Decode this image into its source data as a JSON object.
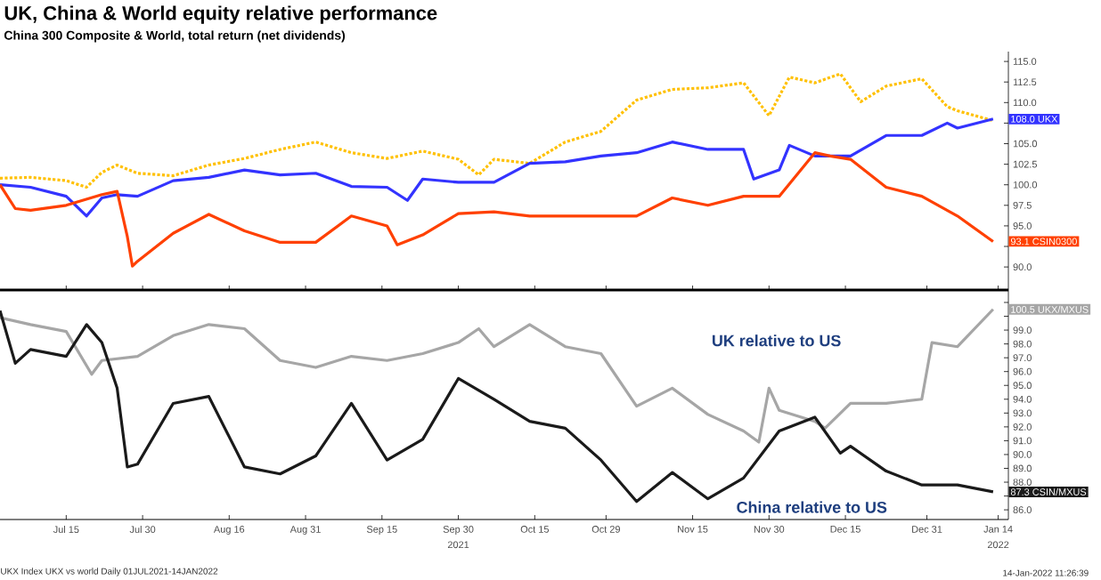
{
  "chart_data": [
    {
      "type": "line",
      "title": "UK, China & World equity relative performance",
      "subtitle": "China 300 Composite & World, total return (net dividends)",
      "xlim": [
        "2021-07-02",
        "2022-01-16"
      ],
      "ylim": [
        87.2,
        116.2
      ],
      "xticks": [
        {
          "value": "2021-07-15",
          "label": null
        },
        {
          "value": "2021-07-30",
          "label": null
        },
        {
          "value": "2021-08-16",
          "label": null
        },
        {
          "value": "2021-08-31",
          "label": null
        },
        {
          "value": "2021-09-15",
          "label": null
        },
        {
          "value": "2021-09-30",
          "label": null
        },
        {
          "value": "2021-10-15",
          "label": null
        },
        {
          "value": "2021-10-29",
          "label": null
        },
        {
          "value": "2021-11-15",
          "label": null
        },
        {
          "value": "2021-11-30",
          "label": null
        },
        {
          "value": "2021-12-15",
          "label": null
        },
        {
          "value": "2021-12-31",
          "label": null
        },
        {
          "value": "2022-01-14",
          "label": null
        }
      ],
      "yticks": [
        {
          "value": 90,
          "label": "90.0"
        },
        {
          "value": 92.5,
          "label": null
        },
        {
          "value": 95,
          "label": "95.0"
        },
        {
          "value": 97.5,
          "label": "97.5"
        },
        {
          "value": 100,
          "label": "100.0"
        },
        {
          "value": 102.5,
          "label": "102.5"
        },
        {
          "value": 105,
          "label": "105.0"
        },
        {
          "value": 107.5,
          "label": null
        },
        {
          "value": 110,
          "label": "110.0"
        },
        {
          "value": 112.5,
          "label": "112.5"
        },
        {
          "value": 115,
          "label": "115.0"
        }
      ],
      "tick_labels": "y",
      "series": [
        {
          "color": "#ffc000",
          "line_style": "dotted",
          "x": [
            "2021-07-02",
            "2021-07-08",
            "2021-07-15",
            "2021-07-19",
            "2021-07-22",
            "2021-07-25",
            "2021-07-29",
            "2021-08-05",
            "2021-08-12",
            "2021-08-19",
            "2021-08-26",
            "2021-09-02",
            "2021-09-09",
            "2021-09-16",
            "2021-09-23",
            "2021-09-30",
            "2021-10-04",
            "2021-10-07",
            "2021-10-14",
            "2021-10-21",
            "2021-10-28",
            "2021-11-04",
            "2021-11-11",
            "2021-11-18",
            "2021-11-25",
            "2021-11-30",
            "2021-12-04",
            "2021-12-09",
            "2021-12-14",
            "2021-12-18",
            "2021-12-23",
            "2021-12-30",
            "2022-01-04",
            "2022-01-06",
            "2022-01-13"
          ],
          "values": [
            100.8,
            100.9,
            100.5,
            99.7,
            101.5,
            102.4,
            101.4,
            101.1,
            102.4,
            103.2,
            104.3,
            105.2,
            103.9,
            103.2,
            104.1,
            103.1,
            101.2,
            103.1,
            102.6,
            105.2,
            106.5,
            110.3,
            111.6,
            111.8,
            112.4,
            108.4,
            113.1,
            112.4,
            113.5,
            110.1,
            112.0,
            112.9,
            109.5,
            109.0,
            107.8
          ]
        },
        {
          "name": "108.0 UKX",
          "color": "#3333ff",
          "x": [
            "2021-07-02",
            "2021-07-08",
            "2021-07-15",
            "2021-07-19",
            "2021-07-22",
            "2021-07-25",
            "2021-07-29",
            "2021-08-05",
            "2021-08-12",
            "2021-08-19",
            "2021-08-26",
            "2021-09-02",
            "2021-09-09",
            "2021-09-16",
            "2021-09-20",
            "2021-09-23",
            "2021-09-30",
            "2021-10-07",
            "2021-10-14",
            "2021-10-21",
            "2021-10-28",
            "2021-11-04",
            "2021-11-11",
            "2021-11-18",
            "2021-11-25",
            "2021-11-27",
            "2021-12-02",
            "2021-12-04",
            "2021-12-09",
            "2021-12-16",
            "2021-12-23",
            "2021-12-30",
            "2022-01-04",
            "2022-01-06",
            "2022-01-13"
          ],
          "values": [
            100.0,
            99.7,
            98.6,
            96.2,
            98.4,
            98.8,
            98.6,
            100.5,
            100.9,
            101.8,
            101.2,
            101.4,
            99.8,
            99.7,
            98.1,
            100.7,
            100.3,
            100.3,
            102.6,
            102.8,
            103.5,
            103.9,
            105.2,
            104.3,
            104.3,
            100.7,
            101.8,
            104.8,
            103.5,
            103.5,
            106.0,
            106.0,
            107.5,
            106.9,
            108.0
          ]
        },
        {
          "name": "93.1 CSIN0300",
          "color": "#ff4000",
          "x": [
            "2021-07-02",
            "2021-07-05",
            "2021-07-08",
            "2021-07-15",
            "2021-07-22",
            "2021-07-25",
            "2021-07-27",
            "2021-07-28",
            "2021-07-29",
            "2021-08-05",
            "2021-08-12",
            "2021-08-19",
            "2021-08-26",
            "2021-09-02",
            "2021-09-09",
            "2021-09-16",
            "2021-09-18",
            "2021-09-23",
            "2021-09-30",
            "2021-10-07",
            "2021-10-14",
            "2021-10-21",
            "2021-10-28",
            "2021-11-04",
            "2021-11-11",
            "2021-11-18",
            "2021-11-25",
            "2021-12-02",
            "2021-12-09",
            "2021-12-12",
            "2021-12-16",
            "2021-12-23",
            "2021-12-30",
            "2022-01-06",
            "2022-01-13"
          ],
          "values": [
            100.0,
            97.1,
            96.9,
            97.5,
            98.8,
            99.2,
            93.7,
            90.1,
            90.7,
            94.1,
            96.4,
            94.4,
            93.0,
            93.0,
            96.2,
            95.0,
            92.7,
            93.9,
            96.5,
            96.7,
            96.2,
            96.2,
            96.2,
            96.2,
            98.4,
            97.5,
            98.6,
            98.6,
            103.9,
            103.5,
            103.1,
            99.7,
            98.6,
            96.2,
            93.1
          ]
        }
      ]
    },
    {
      "type": "line",
      "xlim": [
        "2021-07-02",
        "2022-01-16"
      ],
      "ylim": [
        85.3,
        101.9
      ],
      "xticks": [
        {
          "value": "2021-07-15",
          "label": "Jul 15"
        },
        {
          "value": "2021-07-30",
          "label": "Jul 30"
        },
        {
          "value": "2021-08-16",
          "label": "Aug 16"
        },
        {
          "value": "2021-08-31",
          "label": "Aug 31"
        },
        {
          "value": "2021-09-15",
          "label": "Sep 15"
        },
        {
          "value": "2021-09-30",
          "label": "Sep 30"
        },
        {
          "value": "2021-10-15",
          "label": "Oct 15"
        },
        {
          "value": "2021-10-29",
          "label": "Oct 29"
        },
        {
          "value": "2021-11-15",
          "label": "Nov 15"
        },
        {
          "value": "2021-11-30",
          "label": "Nov 30"
        },
        {
          "value": "2021-12-15",
          "label": "Dec 15"
        },
        {
          "value": "2021-12-31",
          "label": "Dec 31"
        },
        {
          "value": "2022-01-14",
          "label": "Jan 14"
        }
      ],
      "yticks": [
        {
          "value": 86,
          "label": "86.0"
        },
        {
          "value": 87,
          "label": null
        },
        {
          "value": 88,
          "label": "88.0"
        },
        {
          "value": 89,
          "label": "89.0"
        },
        {
          "value": 90,
          "label": "90.0"
        },
        {
          "value": 91,
          "label": "91.0"
        },
        {
          "value": 92,
          "label": "92.0"
        },
        {
          "value": 93,
          "label": "93.0"
        },
        {
          "value": 94,
          "label": "94.0"
        },
        {
          "value": 95,
          "label": "95.0"
        },
        {
          "value": 96,
          "label": "96.0"
        },
        {
          "value": 97,
          "label": "97.0"
        },
        {
          "value": 98,
          "label": "98.0"
        },
        {
          "value": 99,
          "label": "99.0"
        },
        {
          "value": 100,
          "label": null
        },
        {
          "value": 101,
          "label": null
        }
      ],
      "series": [
        {
          "name": "100.5 UKX/MXUS",
          "color": "#a6a6a6",
          "x": [
            "2021-07-02",
            "2021-07-08",
            "2021-07-15",
            "2021-07-20",
            "2021-07-22",
            "2021-07-29",
            "2021-08-05",
            "2021-08-12",
            "2021-08-19",
            "2021-08-26",
            "2021-09-02",
            "2021-09-09",
            "2021-09-16",
            "2021-09-23",
            "2021-09-30",
            "2021-10-04",
            "2021-10-07",
            "2021-10-14",
            "2021-10-21",
            "2021-10-28",
            "2021-11-04",
            "2021-11-11",
            "2021-11-18",
            "2021-11-25",
            "2021-11-28",
            "2021-11-30",
            "2021-12-02",
            "2021-12-09",
            "2021-12-11",
            "2021-12-16",
            "2021-12-23",
            "2021-12-30",
            "2022-01-01",
            "2022-01-06",
            "2022-01-13"
          ],
          "values": [
            99.9,
            99.4,
            98.9,
            95.8,
            96.8,
            97.1,
            98.6,
            99.4,
            99.1,
            96.8,
            96.3,
            97.1,
            96.8,
            97.3,
            98.1,
            99.1,
            97.8,
            99.4,
            97.8,
            97.3,
            93.5,
            94.8,
            92.9,
            91.7,
            90.9,
            94.8,
            93.2,
            92.4,
            91.9,
            93.7,
            93.7,
            94.0,
            98.1,
            97.8,
            100.5
          ]
        },
        {
          "name": "87.3 CSIN/MXUS",
          "color": "#1a1a1a",
          "x": [
            "2021-07-02",
            "2021-07-05",
            "2021-07-08",
            "2021-07-15",
            "2021-07-19",
            "2021-07-22",
            "2021-07-25",
            "2021-07-27",
            "2021-07-29",
            "2021-08-05",
            "2021-08-12",
            "2021-08-19",
            "2021-08-26",
            "2021-09-02",
            "2021-09-09",
            "2021-09-16",
            "2021-09-23",
            "2021-09-30",
            "2021-10-07",
            "2021-10-14",
            "2021-10-21",
            "2021-10-28",
            "2021-11-04",
            "2021-11-11",
            "2021-11-18",
            "2021-11-25",
            "2021-12-02",
            "2021-12-09",
            "2021-12-14",
            "2021-12-16",
            "2021-12-23",
            "2021-12-30",
            "2022-01-06",
            "2022-01-13"
          ],
          "values": [
            100.4,
            96.6,
            97.6,
            97.1,
            99.4,
            98.1,
            94.8,
            89.1,
            89.3,
            93.7,
            94.2,
            89.1,
            88.6,
            89.9,
            93.7,
            89.6,
            91.1,
            95.5,
            94.0,
            92.4,
            91.9,
            89.6,
            86.6,
            88.7,
            86.8,
            88.3,
            91.7,
            92.7,
            90.1,
            90.6,
            88.8,
            87.8,
            87.8,
            87.3
          ]
        }
      ],
      "annotations": [
        "UK relative to US",
        "China relative to US",
        "2021",
        "2022",
        "UKX Index UKX vs world Daily 01JUL2021-14JAN2022",
        "14-Jan-2022 11:26:39"
      ]
    }
  ]
}
